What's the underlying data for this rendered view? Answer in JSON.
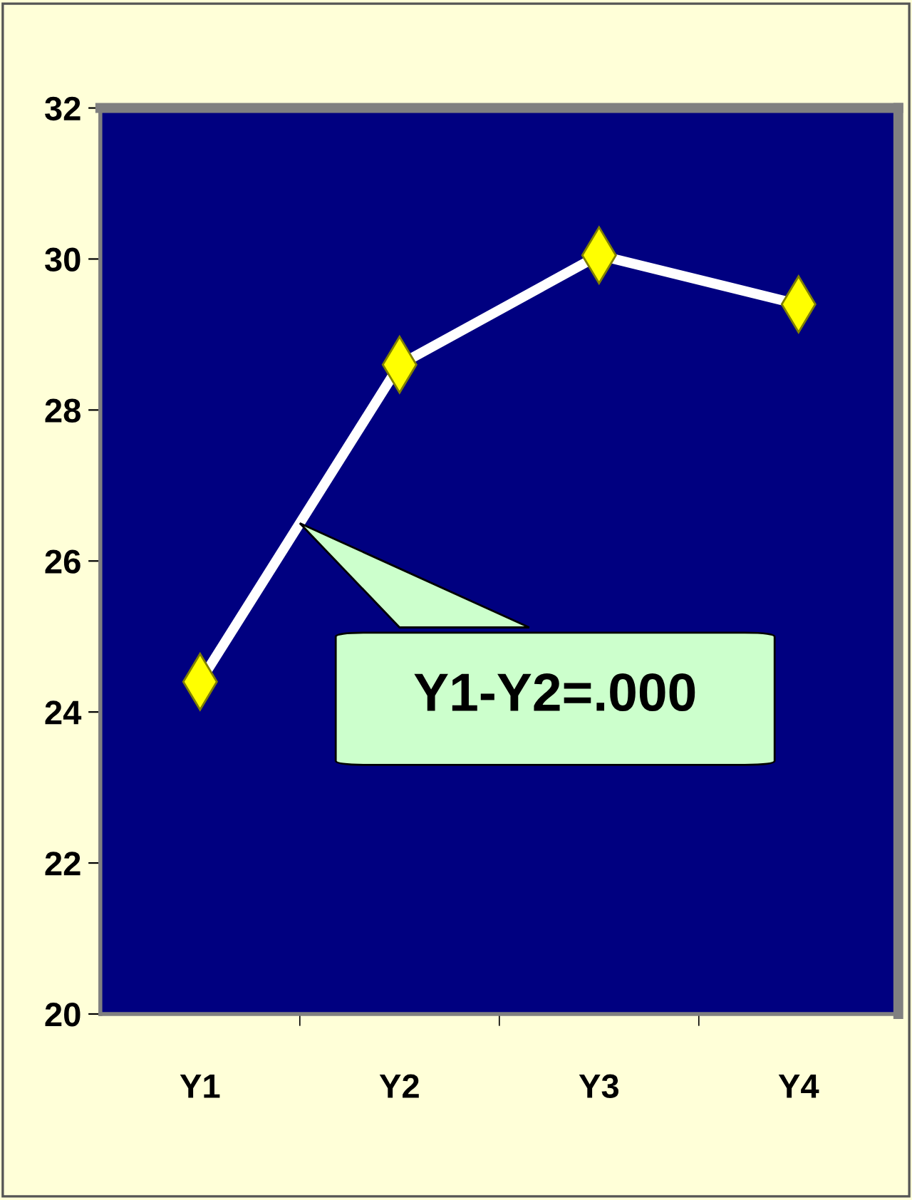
{
  "chart_data": {
    "type": "line",
    "categories": [
      "Y1",
      "Y2",
      "Y3",
      "Y4"
    ],
    "series": [
      {
        "color": "#ffffff",
        "values": [
          24.4,
          28.6,
          30.05,
          29.4
        ]
      }
    ],
    "marker": "diamond",
    "ylim": [
      20,
      32
    ],
    "yticks": [
      20,
      22,
      24,
      26,
      28,
      30,
      32
    ],
    "grid": false,
    "legend": false,
    "annotations": [
      "Y1-Y2=.000"
    ]
  }
}
